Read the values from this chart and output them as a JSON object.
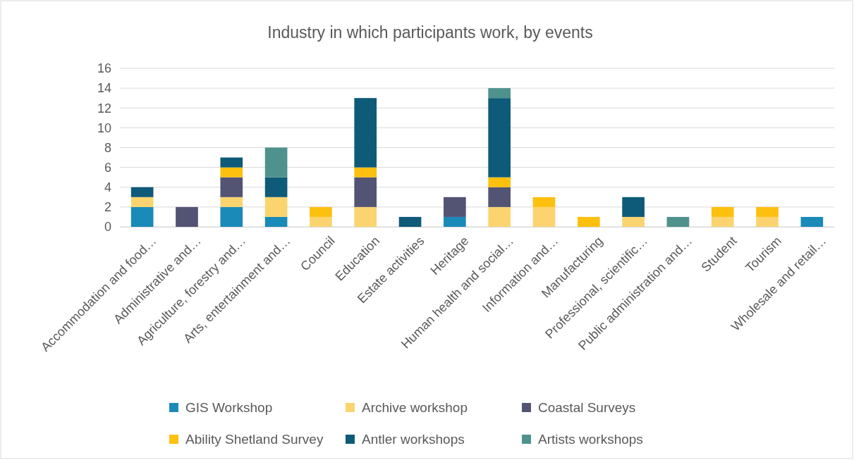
{
  "chart_data": {
    "type": "bar",
    "title": "Industry in which participants work, by events",
    "stacked": true,
    "categories": [
      "Accommodation and food…",
      "Administrative and…",
      "Agriculture, forestry and…",
      "Arts, entertainment and…",
      "Council",
      "Education",
      "Estate activities",
      "Heritage",
      "Human health and social…",
      "Information and…",
      "Manufacturing",
      "Professional, scientific…",
      "Public administration and…",
      "Student",
      "Tourism",
      "Wholesale and retail…"
    ],
    "series": [
      {
        "name": "GIS Workshop",
        "color": "#1a8ab8",
        "values": [
          2,
          0,
          2,
          1,
          0,
          0,
          0,
          1,
          0,
          0,
          0,
          0,
          0,
          0,
          0,
          1
        ]
      },
      {
        "name": "Archive workshop",
        "color": "#fbd46f",
        "values": [
          1,
          0,
          1,
          2,
          1,
          2,
          0,
          0,
          2,
          2,
          0,
          1,
          0,
          1,
          1,
          0
        ]
      },
      {
        "name": "Coastal Surveys",
        "color": "#535373",
        "values": [
          0,
          2,
          2,
          0,
          0,
          3,
          0,
          2,
          2,
          0,
          0,
          0,
          0,
          0,
          0,
          0
        ]
      },
      {
        "name": "Ability Shetland Survey",
        "color": "#fdc00f",
        "values": [
          0,
          0,
          1,
          0,
          1,
          1,
          0,
          0,
          1,
          1,
          1,
          0,
          0,
          1,
          1,
          0
        ]
      },
      {
        "name": "Antler workshops",
        "color": "#0e5a79",
        "values": [
          1,
          0,
          1,
          2,
          0,
          7,
          1,
          0,
          8,
          0,
          0,
          2,
          0,
          0,
          0,
          0
        ]
      },
      {
        "name": "Artists workshops",
        "color": "#4f918d",
        "values": [
          0,
          0,
          0,
          3,
          0,
          0,
          0,
          0,
          1,
          0,
          0,
          0,
          1,
          0,
          0,
          0
        ]
      }
    ],
    "ylim": [
      0,
      16
    ],
    "yticks": [
      0,
      2,
      4,
      6,
      8,
      10,
      12,
      14,
      16
    ],
    "grid": "y",
    "legend": "bottom"
  }
}
